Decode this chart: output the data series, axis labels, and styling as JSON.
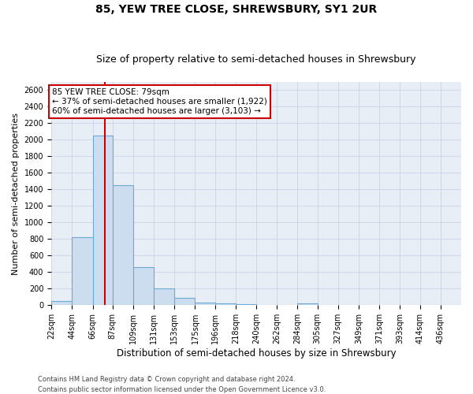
{
  "title": "85, YEW TREE CLOSE, SHREWSBURY, SY1 2UR",
  "subtitle": "Size of property relative to semi-detached houses in Shrewsbury",
  "xlabel": "Distribution of semi-detached houses by size in Shrewsbury",
  "ylabel": "Number of semi-detached properties",
  "footnote1": "Contains HM Land Registry data © Crown copyright and database right 2024.",
  "footnote2": "Contains public sector information licensed under the Open Government Licence v3.0.",
  "bar_edges": [
    22,
    44,
    66,
    87,
    109,
    131,
    153,
    175,
    196,
    218,
    240,
    262,
    284,
    305,
    327,
    349,
    371,
    393,
    414,
    436,
    458
  ],
  "bar_heights": [
    50,
    820,
    2050,
    1450,
    460,
    200,
    90,
    30,
    20,
    15,
    5,
    5,
    20,
    5,
    0,
    0,
    0,
    0,
    0,
    0
  ],
  "bar_color": "#ccddf0",
  "bar_edge_color": "#6aaad4",
  "ylim": [
    0,
    2700
  ],
  "yticks": [
    0,
    200,
    400,
    600,
    800,
    1000,
    1200,
    1400,
    1600,
    1800,
    2000,
    2200,
    2400,
    2600
  ],
  "property_size": 79,
  "vline_color": "#cc0000",
  "annotation_line1": "85 YEW TREE CLOSE: 79sqm",
  "annotation_line2": "← 37% of semi-detached houses are smaller (1,922)",
  "annotation_line3": "60% of semi-detached houses are larger (3,103) →",
  "annotation_box_color": "#ffffff",
  "annotation_box_edgecolor": "#cc0000",
  "grid_color": "#c8d4e8",
  "bg_color": "#e8eef6",
  "title_fontsize": 10,
  "subtitle_fontsize": 9,
  "ylabel_fontsize": 8,
  "xlabel_fontsize": 8.5,
  "tick_label_fontsize": 7,
  "annotation_fontsize": 7.5,
  "footnote_fontsize": 6
}
